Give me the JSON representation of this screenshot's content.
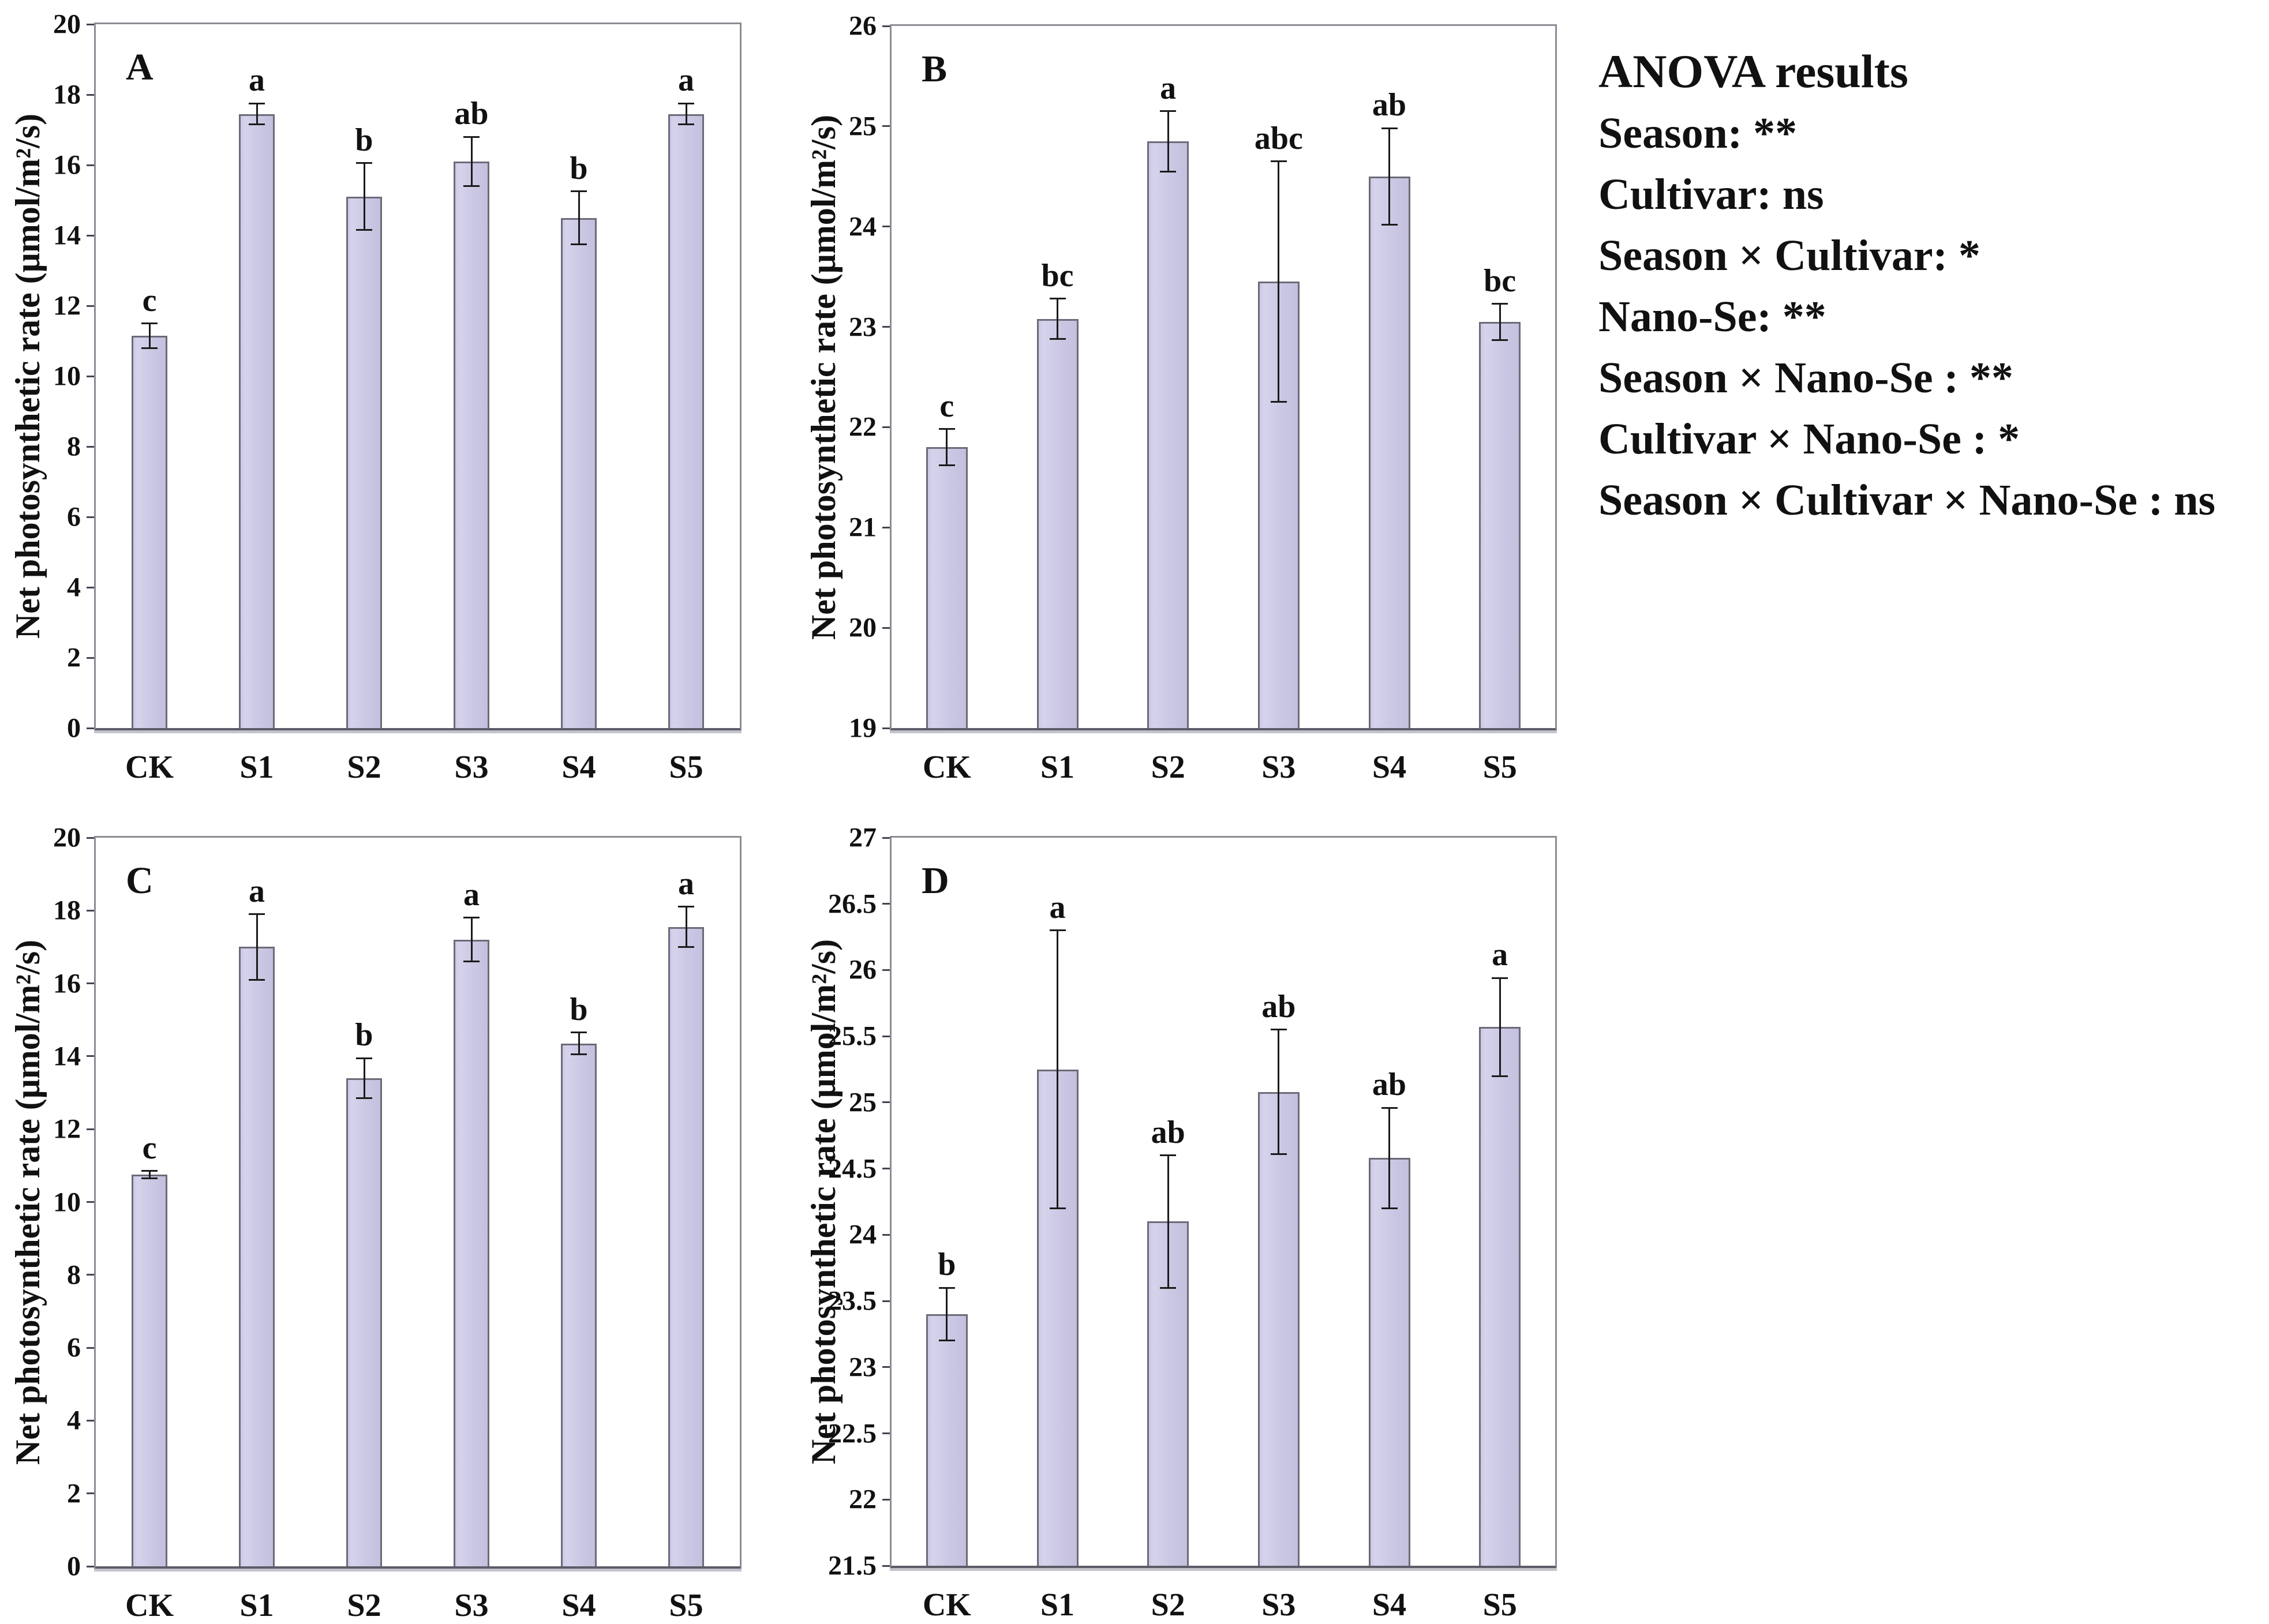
{
  "anova": {
    "title": "ANOVA results",
    "lines": [
      "Season: **",
      "Cultivar: ns",
      "Season × Cultivar: *",
      "Nano-Se: **",
      "Season × Nano-Se : **",
      "Cultivar × Nano-Se : *",
      "Season × Cultivar × Nano-Se : ns"
    ]
  },
  "chart_data": [
    {
      "type": "bar",
      "panel_label": "A",
      "ylabel": "Net photosynthetic rate (μmol/m²/s)",
      "xlabel": "",
      "ylim": [
        0,
        20
      ],
      "yticks": [
        "0",
        "2",
        "4",
        "6",
        "8",
        "10",
        "12",
        "14",
        "16",
        "18",
        "20"
      ],
      "grid": false,
      "legend": "none",
      "categories": [
        "CK",
        "S1",
        "S2",
        "S3",
        "S4",
        "S5"
      ],
      "values": [
        11.15,
        17.45,
        15.1,
        16.1,
        14.5,
        17.45
      ],
      "errors": [
        0.35,
        0.3,
        0.95,
        0.7,
        0.75,
        0.3
      ],
      "sig_letters": [
        "c",
        "a",
        "b",
        "ab",
        "b",
        "a"
      ],
      "bar_color": "#cbc8e4",
      "bar_border": "#6b6b78"
    },
    {
      "type": "bar",
      "panel_label": "B",
      "ylabel": "Net photosynthetic rate (μmol/m²/s)",
      "xlabel": "",
      "ylim": [
        19,
        26
      ],
      "yticks": [
        "19",
        "20",
        "21",
        "22",
        "23",
        "24",
        "25",
        "26"
      ],
      "grid": false,
      "legend": "none",
      "categories": [
        "CK",
        "S1",
        "S2",
        "S3",
        "S4",
        "S5"
      ],
      "values": [
        21.8,
        23.08,
        24.85,
        23.45,
        24.5,
        23.05
      ],
      "errors": [
        0.18,
        0.2,
        0.3,
        1.2,
        0.48,
        0.18
      ],
      "sig_letters": [
        "c",
        "bc",
        "a",
        "abc",
        "ab",
        "bc"
      ],
      "bar_color": "#cbc8e4",
      "bar_border": "#6b6b78"
    },
    {
      "type": "bar",
      "panel_label": "C",
      "ylabel": "Net photosynthetic rate (μmol/m²/s)",
      "xlabel": "",
      "ylim": [
        0,
        20
      ],
      "yticks": [
        "0",
        "2",
        "4",
        "6",
        "8",
        "10",
        "12",
        "14",
        "16",
        "18",
        "20"
      ],
      "grid": false,
      "legend": "none",
      "categories": [
        "CK",
        "S1",
        "S2",
        "S3",
        "S4",
        "S5"
      ],
      "values": [
        10.75,
        17.0,
        13.4,
        17.2,
        14.35,
        17.55
      ],
      "errors": [
        0.1,
        0.9,
        0.55,
        0.6,
        0.3,
        0.55
      ],
      "sig_letters": [
        "c",
        "a",
        "b",
        "a",
        "b",
        "a"
      ],
      "bar_color": "#cbc8e4",
      "bar_border": "#6b6b78"
    },
    {
      "type": "bar",
      "panel_label": "D",
      "ylabel": "Net photosynthetic rate (μmol/m²/s)",
      "xlabel": "",
      "ylim": [
        21.5,
        27
      ],
      "yticks": [
        "21.5",
        "22",
        "22.5",
        "23",
        "23.5",
        "24",
        "24.5",
        "25",
        "25.5",
        "26",
        "26.5",
        "27"
      ],
      "grid": false,
      "legend": "none",
      "categories": [
        "CK",
        "S1",
        "S2",
        "S3",
        "S4",
        "S5"
      ],
      "values": [
        23.4,
        25.25,
        24.1,
        25.08,
        24.58,
        25.57
      ],
      "errors": [
        0.2,
        1.05,
        0.5,
        0.47,
        0.38,
        0.37
      ],
      "sig_letters": [
        "b",
        "a",
        "ab",
        "ab",
        "ab",
        "a"
      ],
      "bar_color": "#cbc8e4",
      "bar_border": "#6b6b78"
    }
  ]
}
